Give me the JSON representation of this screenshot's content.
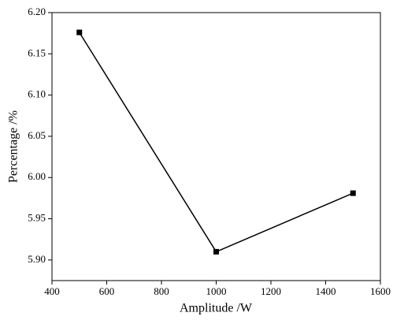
{
  "chart_data": {
    "type": "line",
    "x_label": "Amplitude /W",
    "y_label": "Percentage /%",
    "x": [
      500,
      1000,
      1500
    ],
    "series": [
      {
        "color": "#000000",
        "values": [
          6.176,
          5.91,
          5.981
        ]
      }
    ],
    "xlim": [
      400,
      1600
    ],
    "xticks": [
      400,
      600,
      800,
      1000,
      1200,
      1400,
      1600
    ],
    "ylim": [
      5.875,
      6.2
    ],
    "yticks": [
      {
        "value": 5.9,
        "label": "5.90"
      },
      {
        "value": 5.95,
        "label": "5.95"
      },
      {
        "value": 6.0,
        "label": "6.00"
      },
      {
        "value": 6.05,
        "label": "6.05"
      },
      {
        "value": 6.1,
        "label": "6.10"
      },
      {
        "value": 6.15,
        "label": "6.15"
      },
      {
        "value": 6.2,
        "label": "6.20"
      }
    ]
  }
}
